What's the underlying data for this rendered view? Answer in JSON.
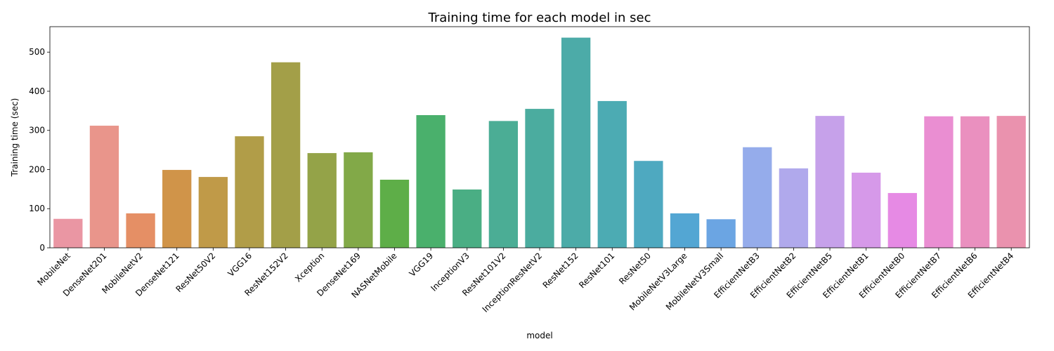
{
  "chart_data": {
    "type": "bar",
    "title": "Training time for each model in sec",
    "xlabel": "model",
    "ylabel": "Training time (sec)",
    "ylim": [
      0,
      565
    ],
    "yticks": [
      0,
      100,
      200,
      300,
      400,
      500
    ],
    "grid": false,
    "legend": "none",
    "categories": [
      "MobileNet",
      "DenseNet201",
      "MobileNetV2",
      "DenseNet121",
      "ResNet50V2",
      "VGG16",
      "ResNet152V2",
      "Xception",
      "DenseNet169",
      "NASNetMobile",
      "VGG19",
      "InceptionV3",
      "ResNet101V2",
      "InceptionResNetV2",
      "ResNet152",
      "ResNet101",
      "ResNet50",
      "MobileNetV3Large",
      "MobileNetV3Small",
      "EfficientNetB3",
      "EfficientNetB2",
      "EfficientNetB5",
      "EfficientNetB1",
      "EfficientNetB0",
      "EfficientNetB7",
      "EfficientNetB6",
      "EfficientNetB4"
    ],
    "values": [
      74,
      312,
      88,
      199,
      181,
      285,
      474,
      242,
      244,
      174,
      339,
      149,
      324,
      355,
      537,
      375,
      222,
      88,
      73,
      257,
      203,
      337,
      192,
      140,
      336,
      336,
      337
    ],
    "colors": [
      "#ea96a3",
      "#e9958b",
      "#e58f65",
      "#d09449",
      "#c09a48",
      "#b19d48",
      "#a39f48",
      "#94a348",
      "#82a948",
      "#5eae48",
      "#4ab06c",
      "#4aae84",
      "#4bad95",
      "#4bac9f",
      "#4caba8",
      "#4cabb3",
      "#4ea9c0",
      "#53a6d3",
      "#6ba5e3",
      "#95aceb",
      "#b0a9ec",
      "#c6a1ea",
      "#d699e9",
      "#e68ae4",
      "#ea8ed2",
      "#ea90bf",
      "#ea92ae"
    ]
  }
}
